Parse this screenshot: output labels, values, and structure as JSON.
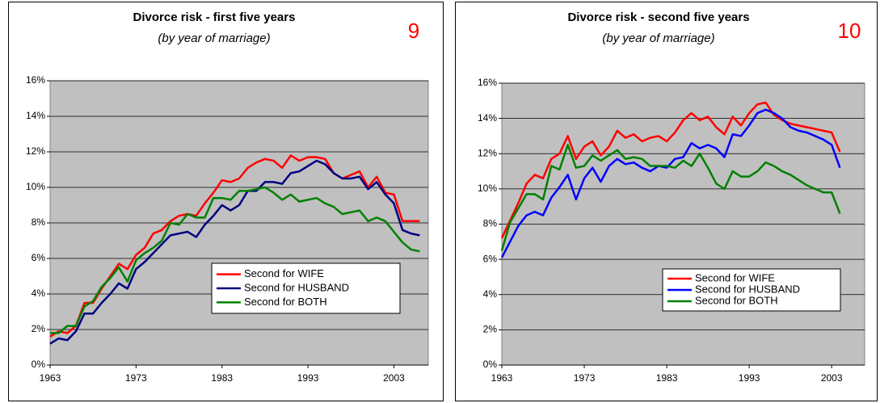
{
  "chart_data": [
    {
      "type": "line",
      "title": "Divorce risk - first five years",
      "subtitle": "(by year of marriage)",
      "annotation": "9",
      "x": [
        1963,
        1964,
        1965,
        1966,
        1967,
        1968,
        1969,
        1970,
        1971,
        1972,
        1973,
        1974,
        1975,
        1976,
        1977,
        1978,
        1979,
        1980,
        1981,
        1982,
        1983,
        1984,
        1985,
        1986,
        1987,
        1988,
        1989,
        1990,
        1991,
        1992,
        1993,
        1994,
        1995,
        1996,
        1997,
        1998,
        1999,
        2000,
        2001,
        2002,
        2003,
        2004,
        2005,
        2006
      ],
      "series": [
        {
          "name": "Second for WIFE",
          "color": "#ff0000",
          "values": [
            1.6,
            1.9,
            1.8,
            2.2,
            3.5,
            3.5,
            4.3,
            5.0,
            5.7,
            5.4,
            6.2,
            6.6,
            7.4,
            7.6,
            8.1,
            8.4,
            8.5,
            8.4,
            9.1,
            9.7,
            10.4,
            10.3,
            10.5,
            11.1,
            11.4,
            11.6,
            11.5,
            11.1,
            11.8,
            11.5,
            11.7,
            11.7,
            11.6,
            10.8,
            10.5,
            10.7,
            10.9,
            10.0,
            10.6,
            9.7,
            9.6,
            8.1,
            8.1,
            8.1
          ]
        },
        {
          "name": "Second for HUSBAND",
          "color": "#000080",
          "values": [
            1.2,
            1.5,
            1.4,
            1.9,
            2.9,
            2.9,
            3.5,
            4.0,
            4.6,
            4.3,
            5.4,
            5.8,
            6.3,
            6.8,
            7.3,
            7.4,
            7.5,
            7.2,
            7.9,
            8.4,
            9.0,
            8.7,
            9.0,
            9.8,
            9.8,
            10.3,
            10.3,
            10.2,
            10.8,
            10.9,
            11.2,
            11.5,
            11.3,
            10.8,
            10.5,
            10.5,
            10.6,
            9.9,
            10.3,
            9.6,
            9.1,
            7.6,
            7.4,
            7.3
          ]
        },
        {
          "name": "Second for BOTH",
          "color": "#008000",
          "values": [
            1.8,
            1.8,
            2.2,
            2.2,
            3.3,
            3.6,
            4.4,
            4.9,
            5.5,
            4.7,
            5.9,
            6.3,
            6.6,
            7.0,
            8.0,
            7.9,
            8.5,
            8.3,
            8.3,
            9.4,
            9.4,
            9.3,
            9.8,
            9.8,
            9.9,
            10.0,
            9.7,
            9.3,
            9.6,
            9.2,
            9.3,
            9.4,
            9.1,
            8.9,
            8.5,
            8.6,
            8.7,
            8.1,
            8.3,
            8.1,
            7.5,
            6.9,
            6.5,
            6.4
          ]
        }
      ],
      "xlim": [
        1963,
        2007
      ],
      "xticks": [
        1963,
        1973,
        1983,
        1993,
        2003
      ],
      "ylim": [
        0,
        16
      ],
      "yticks": [
        {
          "value": 0,
          "label": "0%"
        },
        {
          "value": 2,
          "label": "2%"
        },
        {
          "value": 4,
          "label": "4%"
        },
        {
          "value": 6,
          "label": "6%"
        },
        {
          "value": 8,
          "label": "8%"
        },
        {
          "value": 10,
          "label": "10%"
        },
        {
          "value": 12,
          "label": "12%"
        },
        {
          "value": 14,
          "label": "14%"
        },
        {
          "value": 16,
          "label": "16%"
        }
      ],
      "grid": true,
      "legend": "lower right"
    },
    {
      "type": "line",
      "title": "Divorce risk - second five years",
      "subtitle": "(by year of marriage)",
      "annotation": "10",
      "x": [
        1963,
        1964,
        1965,
        1966,
        1967,
        1968,
        1969,
        1970,
        1971,
        1972,
        1973,
        1974,
        1975,
        1976,
        1977,
        1978,
        1979,
        1980,
        1981,
        1982,
        1983,
        1984,
        1985,
        1986,
        1987,
        1988,
        1989,
        1990,
        1991,
        1992,
        1993,
        1994,
        1995,
        1996,
        1997,
        1998,
        1999,
        2000,
        2001,
        2002,
        2003,
        2004
      ],
      "series": [
        {
          "name": "Second for WIFE",
          "color": "#ff0000",
          "values": [
            7.2,
            8.2,
            9.2,
            10.3,
            10.8,
            10.6,
            11.7,
            12.0,
            13.0,
            11.7,
            12.4,
            12.7,
            11.9,
            12.4,
            13.3,
            12.9,
            13.1,
            12.7,
            12.9,
            13.0,
            12.7,
            13.2,
            13.9,
            14.3,
            13.9,
            14.1,
            13.5,
            13.1,
            14.1,
            13.6,
            14.3,
            14.8,
            14.9,
            14.2,
            13.9,
            13.7,
            13.6,
            13.5,
            13.4,
            13.3,
            13.2,
            12.1
          ]
        },
        {
          "name": "Second for HUSBAND",
          "color": "#0000ff",
          "values": [
            6.1,
            7.0,
            7.9,
            8.5,
            8.7,
            8.5,
            9.5,
            10.1,
            10.8,
            9.4,
            10.6,
            11.2,
            10.4,
            11.3,
            11.7,
            11.4,
            11.5,
            11.2,
            11.0,
            11.3,
            11.2,
            11.7,
            11.8,
            12.6,
            12.3,
            12.5,
            12.3,
            11.8,
            13.1,
            13.0,
            13.6,
            14.3,
            14.5,
            14.3,
            14.0,
            13.5,
            13.3,
            13.2,
            13.0,
            12.8,
            12.5,
            11.2
          ]
        },
        {
          "name": "Second for BOTH",
          "color": "#008000",
          "values": [
            6.5,
            8.1,
            8.9,
            9.7,
            9.7,
            9.4,
            11.3,
            11.1,
            12.5,
            11.2,
            11.3,
            11.9,
            11.6,
            11.9,
            12.2,
            11.7,
            11.8,
            11.7,
            11.3,
            11.3,
            11.3,
            11.2,
            11.6,
            11.3,
            12.0,
            11.2,
            10.3,
            10.0,
            11.0,
            10.7,
            10.7,
            11.0,
            11.5,
            11.3,
            11.0,
            10.8,
            10.5,
            10.2,
            10.0,
            9.8,
            9.8,
            8.6
          ]
        }
      ],
      "xlim": [
        1963,
        2007
      ],
      "xticks": [
        1963,
        1973,
        1983,
        1993,
        2003
      ],
      "ylim": [
        0,
        16
      ],
      "yticks": [
        {
          "value": 0,
          "label": "0%"
        },
        {
          "value": 2,
          "label": "2%"
        },
        {
          "value": 4,
          "label": "4%"
        },
        {
          "value": 6,
          "label": "6%"
        },
        {
          "value": 8,
          "label": "8%"
        },
        {
          "value": 10,
          "label": "10%"
        },
        {
          "value": 12,
          "label": "12%"
        },
        {
          "value": 14,
          "label": "14%"
        },
        {
          "value": 16,
          "label": "16%"
        }
      ],
      "grid": true,
      "legend": "lower right"
    }
  ]
}
